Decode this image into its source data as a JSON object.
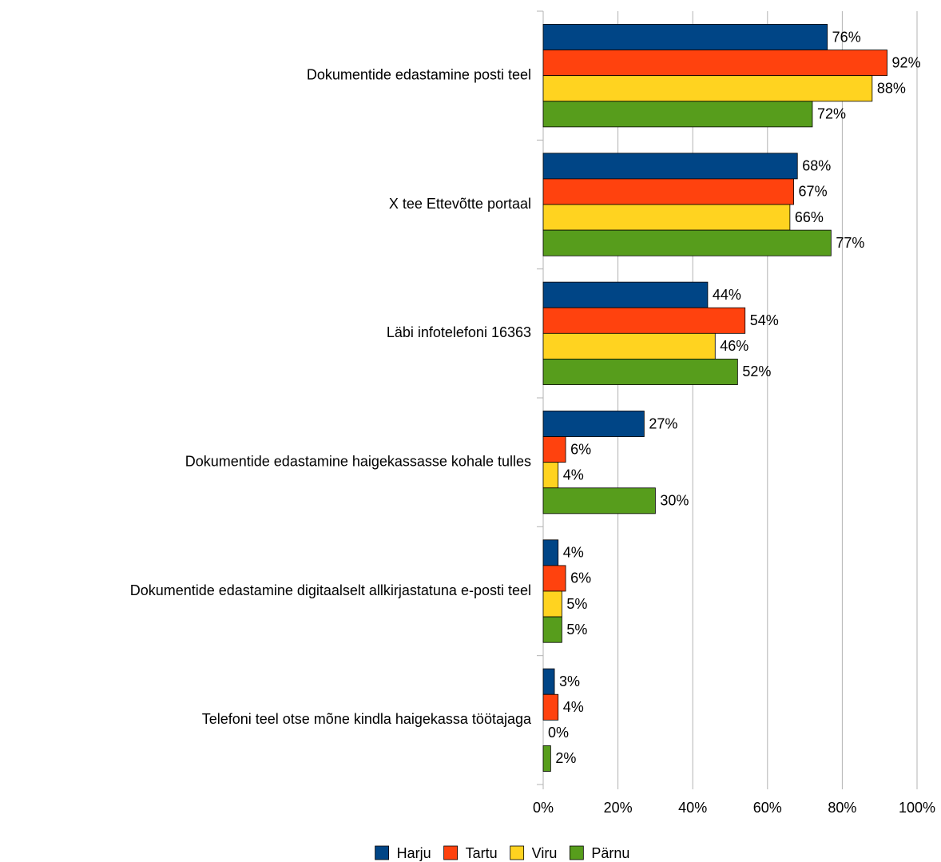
{
  "chart_data": {
    "type": "hbar",
    "categories": [
      "Dokumentide edastamine posti teel",
      "X tee Ettevõtte portaal",
      "Läbi infotelefoni 16363",
      "Dokumentide edastamine haigekassasse kohale tulles",
      "Dokumentide edastamine digitaalselt allkirjastatuna e-posti teel",
      "Telefoni teel otse mõne kindla haigekassa töötajaga"
    ],
    "series": [
      {
        "name": "Harju",
        "color": "#004586",
        "values": [
          76,
          68,
          44,
          27,
          4,
          3
        ],
        "value_labels": [
          "76%",
          "68%",
          "44%",
          "27%",
          "4%",
          "3%"
        ]
      },
      {
        "name": "Tartu",
        "color": "#ff420e",
        "values": [
          92,
          67,
          54,
          6,
          6,
          4
        ],
        "value_labels": [
          "92%",
          "67%",
          "54%",
          "6%",
          "6%",
          "4%"
        ]
      },
      {
        "name": "Viru",
        "color": "#ffd320",
        "values": [
          88,
          66,
          46,
          4,
          5,
          0
        ],
        "value_labels": [
          "88%",
          "66%",
          "46%",
          "4%",
          "5%",
          "0%"
        ]
      },
      {
        "name": "Pärnu",
        "color": "#579d1c",
        "values": [
          72,
          77,
          52,
          30,
          5,
          2
        ],
        "value_labels": [
          "72%",
          "77%",
          "52%",
          "30%",
          "5%",
          "2%"
        ]
      }
    ],
    "xlim": [
      0,
      100
    ],
    "xticks": [
      {
        "value": 0,
        "label": "0%"
      },
      {
        "value": 20,
        "label": "20%"
      },
      {
        "value": 40,
        "label": "40%"
      },
      {
        "value": 60,
        "label": "60%"
      },
      {
        "value": 80,
        "label": "80%"
      },
      {
        "value": 100,
        "label": "100%"
      }
    ],
    "grid": true,
    "legend": "bottom"
  }
}
